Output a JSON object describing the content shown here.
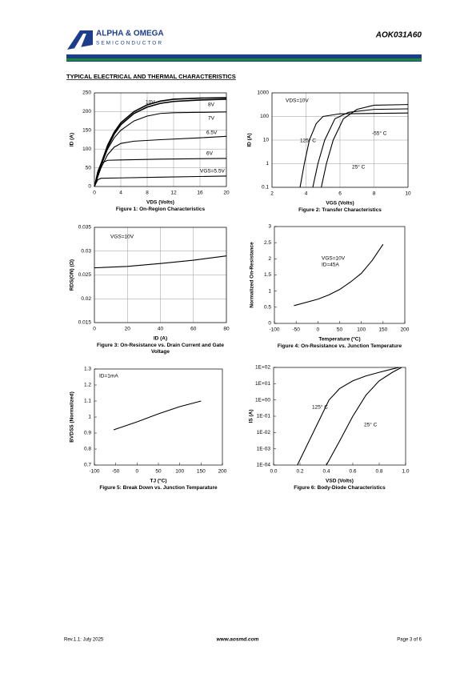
{
  "header": {
    "company": "ALPHA & OMEGA",
    "division": "SEMICONDUCTOR",
    "part": "AOK031A60"
  },
  "section_title": "TYPICAL ELECTRICAL AND THERMAL CHARACTERISTICS",
  "chart_data": [
    {
      "type": "line",
      "caption": "Figure 1: On-Region Characteristics",
      "x_label": "VDS (Volts)",
      "y_label": "ID (A)",
      "xlim": [
        0,
        20
      ],
      "ylim": [
        0,
        250
      ],
      "xticks": [
        0,
        4,
        8,
        12,
        16,
        20
      ],
      "yticks": [
        0,
        50,
        100,
        150,
        200,
        250
      ],
      "grid": true,
      "series": [
        {
          "name": "10V",
          "color": "#000000",
          "x": [
            0,
            1,
            2,
            3,
            4,
            6,
            8,
            10,
            12,
            16,
            20
          ],
          "values": [
            0,
            60,
            110,
            145,
            170,
            200,
            218,
            228,
            233,
            236,
            237
          ]
        },
        {
          "name": "8V",
          "color": "#000000",
          "x": [
            0,
            1,
            2,
            3,
            4,
            6,
            8,
            10,
            12,
            16,
            20
          ],
          "values": [
            0,
            58,
            105,
            140,
            165,
            195,
            212,
            222,
            227,
            231,
            233
          ]
        },
        {
          "name": "7V",
          "color": "#000000",
          "x": [
            0,
            1,
            2,
            3,
            4,
            6,
            8,
            10,
            12,
            16,
            20
          ],
          "values": [
            0,
            55,
            100,
            130,
            150,
            175,
            188,
            195,
            197,
            198,
            199
          ]
        },
        {
          "name": "6.5V",
          "color": "#000000",
          "x": [
            0,
            1,
            2,
            3,
            4,
            6,
            10,
            16,
            20
          ],
          "values": [
            0,
            50,
            85,
            105,
            115,
            121,
            125,
            130,
            134
          ]
        },
        {
          "name": "6V",
          "color": "#000000",
          "x": [
            0,
            0.5,
            1,
            2,
            4,
            10,
            20
          ],
          "values": [
            0,
            40,
            62,
            70,
            71,
            73,
            75
          ]
        },
        {
          "name": "VGS=5.5V",
          "color": "#000000",
          "x": [
            0,
            0.5,
            1,
            4,
            10,
            20
          ],
          "values": [
            0,
            18,
            22,
            23,
            25,
            28
          ]
        }
      ],
      "annotations": []
    },
    {
      "type": "line",
      "caption": "Figure 2: Transfer Characteristics",
      "x_label": "VGS (Volts)",
      "y_label": "ID (A)",
      "xlim": [
        2,
        10
      ],
      "ylim": [
        0.1,
        1000
      ],
      "ylog": true,
      "xticks": [
        2,
        4,
        6,
        8,
        10
      ],
      "yticks": [
        0.1,
        1,
        10,
        100,
        1000
      ],
      "grid": true,
      "series": [
        {
          "name": "125° C",
          "color": "#000000",
          "x": [
            3.65,
            3.9,
            4.2,
            4.6,
            5,
            6,
            10
          ],
          "values": [
            0.1,
            1,
            10,
            50,
            100,
            130,
            140
          ]
        },
        {
          "name": "25° C",
          "color": "#000000",
          "x": [
            4.4,
            4.7,
            5.1,
            5.7,
            6.5,
            8,
            10
          ],
          "values": [
            0.1,
            1,
            10,
            80,
            150,
            200,
            210
          ]
        },
        {
          "name": "-55° C",
          "color": "#000000",
          "x": [
            4.9,
            5.2,
            5.6,
            6.2,
            7,
            8,
            10
          ],
          "values": [
            0.1,
            1,
            10,
            80,
            200,
            300,
            320
          ]
        }
      ],
      "annotations": [
        "VDS=10V"
      ]
    },
    {
      "type": "line",
      "caption": "Figure 3: On-Resistance vs. Drain Current and Gate Voltage",
      "x_label": "ID (A)",
      "y_label": "RDS(ON) (Ω)",
      "xlim": [
        0,
        80
      ],
      "ylim": [
        0.015,
        0.035
      ],
      "xticks": [
        0,
        20,
        40,
        60,
        80
      ],
      "yticks": [
        0.015,
        0.02,
        0.025,
        0.03,
        0.035
      ],
      "grid": true,
      "series": [
        {
          "color": "#000000",
          "x": [
            0,
            20,
            40,
            60,
            80
          ],
          "values": [
            0.0265,
            0.0268,
            0.0274,
            0.0281,
            0.029
          ]
        }
      ],
      "annotations": [
        "VGS=10V"
      ]
    },
    {
      "type": "line",
      "caption": "Figure 4: On-Resistance vs. Junction Temperature",
      "x_label": "Temperature (°C)",
      "y_label": "Normalized On-Resistance",
      "xlim": [
        -100,
        200
      ],
      "ylim": [
        0,
        3
      ],
      "xticks": [
        -100,
        -50,
        0,
        50,
        100,
        150,
        200
      ],
      "yticks": [
        0,
        0.5,
        1,
        1.5,
        2,
        2.5,
        3
      ],
      "grid": false,
      "series": [
        {
          "color": "#000000",
          "x": [
            -55,
            0,
            25,
            50,
            75,
            100,
            125,
            150
          ],
          "values": [
            0.55,
            0.75,
            0.88,
            1.05,
            1.28,
            1.55,
            1.95,
            2.45
          ]
        }
      ],
      "annotations": [
        "VGS=10V",
        "ID=45A"
      ]
    },
    {
      "type": "line",
      "caption": "Figure 5: Break Down vs. Junction Temparature",
      "x_label": "TJ (°C)",
      "y_label": "BVDSS (Normalized)",
      "xlim": [
        -100,
        200
      ],
      "ylim": [
        0.7,
        1.3
      ],
      "xticks": [
        -100,
        -50,
        0,
        50,
        100,
        150,
        200
      ],
      "yticks": [
        0.7,
        0.8,
        0.9,
        1,
        1.1,
        1.2,
        1.3
      ],
      "grid": false,
      "series": [
        {
          "color": "#000000",
          "x": [
            -55,
            0,
            50,
            100,
            150
          ],
          "values": [
            0.92,
            0.97,
            1.02,
            1.065,
            1.1
          ]
        }
      ],
      "annotations": [
        "ID=1mA"
      ]
    },
    {
      "type": "line",
      "caption": "Figure 6: Body-Diode Characteristics",
      "x_label": "VSD (Volts)",
      "y_label": "IS (A)",
      "xlim": [
        0,
        1
      ],
      "ylim": [
        0.0001,
        100
      ],
      "ylog": true,
      "xticks": [
        {
          "value": 0,
          "label": "0.0"
        },
        0.2,
        0.4,
        0.6,
        0.8,
        {
          "value": 1,
          "label": "1.0"
        }
      ],
      "yticks": [
        {
          "value": 0.0001,
          "label": "1E-04"
        },
        {
          "value": 0.001,
          "label": "1E-03"
        },
        {
          "value": 0.01,
          "label": "1E-02"
        },
        {
          "value": 0.1,
          "label": "1E-01"
        },
        {
          "value": 1,
          "label": "1E+00"
        },
        {
          "value": 10,
          "label": "1E+01"
        },
        {
          "value": 100,
          "label": "1E+02"
        }
      ],
      "grid": false,
      "series": [
        {
          "name": "125° C",
          "color": "#000000",
          "x": [
            0.18,
            0.3,
            0.42,
            0.5,
            0.6,
            0.7,
            0.8,
            0.9,
            0.95
          ],
          "values": [
            0.0001,
            0.01,
            1,
            5,
            15,
            30,
            50,
            80,
            100
          ]
        },
        {
          "name": "25° C",
          "color": "#000000",
          "x": [
            0.4,
            0.5,
            0.6,
            0.7,
            0.8,
            0.9,
            0.97
          ],
          "values": [
            0.0001,
            0.003,
            0.1,
            2,
            15,
            50,
            100
          ]
        }
      ],
      "annotations": []
    }
  ],
  "footer": {
    "revision": "Rev.1.1: July  2025",
    "website": "www.aosmd.com",
    "page": "Page 3 of 6"
  }
}
